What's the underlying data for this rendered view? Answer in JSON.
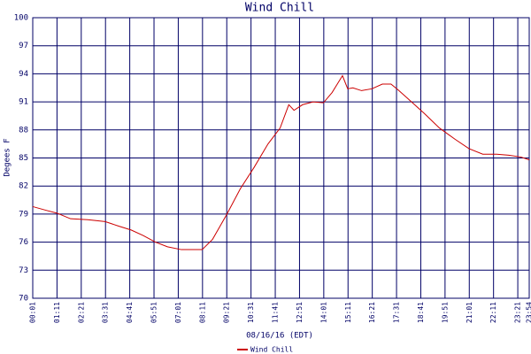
{
  "chart_data": {
    "type": "line",
    "title": "Wind Chill",
    "y_label": "Degees F",
    "x_label": "08/16/16 (EDT)",
    "x": [
      "00:01",
      "00:40",
      "01:11",
      "01:50",
      "02:40",
      "03:30",
      "04:10",
      "04:45",
      "05:20",
      "05:55",
      "06:30",
      "07:10",
      "07:50",
      "08:10",
      "08:40",
      "09:20",
      "10:00",
      "10:40",
      "11:20",
      "11:55",
      "12:20",
      "12:35",
      "13:00",
      "13:30",
      "14:00",
      "14:25",
      "14:55",
      "15:10",
      "15:25",
      "15:50",
      "16:20",
      "16:50",
      "17:15",
      "17:35",
      "18:05",
      "18:50",
      "19:35",
      "20:20",
      "21:00",
      "21:40",
      "22:20",
      "22:55",
      "23:30",
      "23:54"
    ],
    "series": [
      {
        "name": "Wind Chill",
        "color": "#cc0000",
        "values": [
          79.8,
          79.4,
          79.1,
          78.5,
          78.4,
          78.2,
          77.7,
          77.3,
          76.7,
          76.0,
          75.5,
          75.2,
          75.2,
          75.2,
          76.3,
          78.9,
          81.7,
          84.0,
          86.5,
          88.2,
          90.7,
          90.1,
          90.7,
          91.0,
          90.9,
          92.0,
          93.8,
          92.4,
          92.5,
          92.2,
          92.4,
          92.9,
          92.9,
          92.3,
          91.3,
          89.8,
          88.2,
          87.0,
          86.0,
          85.4,
          85.4,
          85.3,
          85.1,
          84.8
        ]
      }
    ],
    "xlim": [
      "00:01",
      "23:54"
    ],
    "xticks": [
      "00:01",
      "01:11",
      "02:21",
      "03:31",
      "04:41",
      "05:51",
      "07:01",
      "08:11",
      "09:21",
      "10:31",
      "11:41",
      "12:51",
      "14:01",
      "15:11",
      "16:21",
      "17:31",
      "18:41",
      "19:51",
      "21:01",
      "22:11",
      "23:21",
      "23:54"
    ],
    "ylim": [
      70,
      100
    ],
    "yticks": [
      70,
      73,
      76,
      79,
      82,
      85,
      88,
      91,
      94,
      97,
      100
    ],
    "grid": true
  }
}
